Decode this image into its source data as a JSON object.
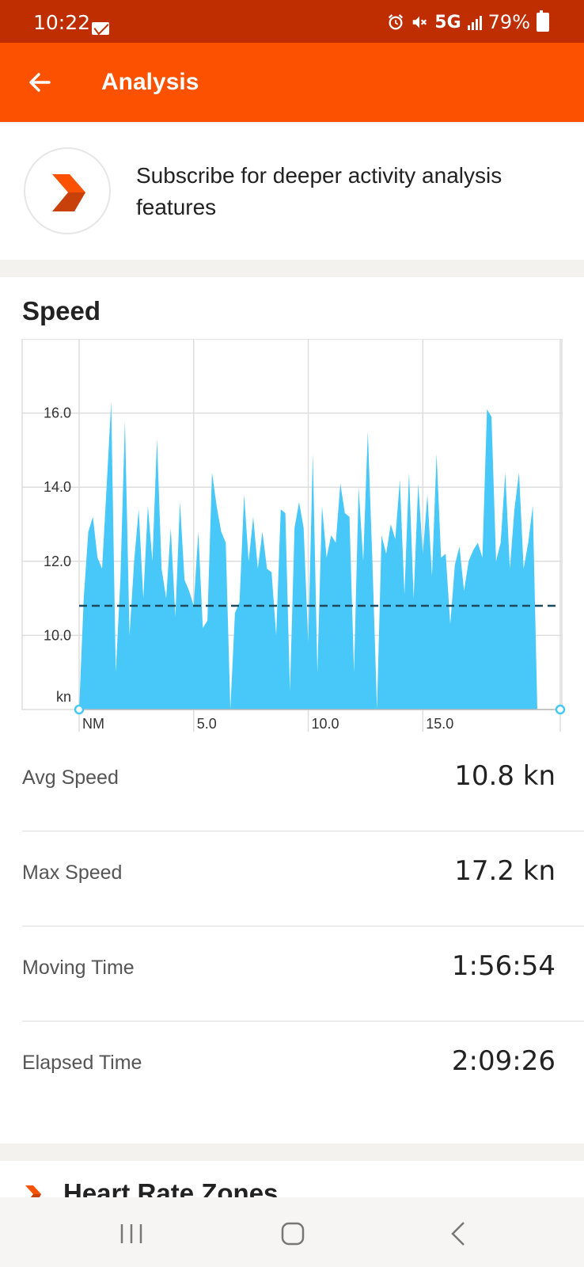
{
  "status_bar": {
    "time": "10:22",
    "network": "5G",
    "battery": "79%"
  },
  "app_bar": {
    "title": "Analysis",
    "back_icon": "arrow-left-icon"
  },
  "promo": {
    "text": "Subscribe for deeper activity analysis features",
    "logo_icon": "strava-chevron-logo"
  },
  "speed": {
    "title": "Speed",
    "stats": [
      {
        "label": "Avg Speed",
        "value": "10.8 kn"
      },
      {
        "label": "Max Speed",
        "value": "17.2 kn"
      },
      {
        "label": "Moving Time",
        "value": "1:56:54"
      },
      {
        "label": "Elapsed Time",
        "value": "2:09:26"
      }
    ]
  },
  "next_section": {
    "title": "Heart Rate Zones"
  },
  "colors": {
    "brand": "#fc5200",
    "status_bar": "#bf2e00",
    "area_fill": "#48c8f8",
    "avg_line": "#1e4a5e"
  },
  "chart_data": {
    "type": "area",
    "ylabel": "kn",
    "xlabel": "NM",
    "x_ticks": [
      "5.0",
      "10.0",
      "15.0"
    ],
    "y_ticks": [
      "10.0",
      "12.0",
      "14.0",
      "16.0"
    ],
    "xlim": [
      0,
      21
    ],
    "ylim": [
      8,
      18
    ],
    "avg_line": 10.8,
    "grid": true,
    "x": [
      0.0,
      0.2,
      0.4,
      0.6,
      0.8,
      1.0,
      1.2,
      1.4,
      1.6,
      1.8,
      2.0,
      2.2,
      2.4,
      2.6,
      2.8,
      3.0,
      3.2,
      3.4,
      3.6,
      3.8,
      4.0,
      4.2,
      4.4,
      4.6,
      4.8,
      5.0,
      5.2,
      5.4,
      5.6,
      5.8,
      6.0,
      6.2,
      6.4,
      6.6,
      6.8,
      7.0,
      7.2,
      7.4,
      7.6,
      7.8,
      8.0,
      8.2,
      8.4,
      8.6,
      8.8,
      9.0,
      9.2,
      9.4,
      9.6,
      9.8,
      10.0,
      10.2,
      10.4,
      10.6,
      10.8,
      11.0,
      11.2,
      11.4,
      11.6,
      11.8,
      12.0,
      12.2,
      12.4,
      12.6,
      12.8,
      13.0,
      13.2,
      13.4,
      13.6,
      13.8,
      14.0,
      14.2,
      14.4,
      14.6,
      14.8,
      15.0,
      15.2,
      15.4,
      15.6,
      15.8,
      16.0,
      16.2,
      16.4,
      16.6,
      16.8,
      17.0,
      17.2,
      17.4,
      17.6,
      17.8,
      18.0,
      18.2,
      18.4,
      18.6,
      18.8,
      19.0,
      19.2,
      19.4,
      19.6,
      19.8,
      20.0,
      20.2,
      20.4,
      20.6,
      20.8,
      21.0
    ],
    "series": [
      {
        "values": [
          8.0,
          11.0,
          12.8,
          13.2,
          12.1,
          11.8,
          14.0,
          16.3,
          9.0,
          11.5,
          15.8,
          10.0,
          12.0,
          13.4,
          11.0,
          13.5,
          12.0,
          15.3,
          11.8,
          11.0,
          12.9,
          10.5,
          13.6,
          11.5,
          11.2,
          10.8,
          12.8,
          10.2,
          10.4,
          14.4,
          13.5,
          12.8,
          12.5,
          8.0,
          10.6,
          10.9,
          13.8,
          12.0,
          13.2,
          11.8,
          12.8,
          11.8,
          11.7,
          10.0,
          13.4,
          13.3,
          8.5,
          12.9,
          13.6,
          12.9,
          9.8,
          14.9,
          9.0,
          13.5,
          12.1,
          12.7,
          12.5,
          14.1,
          13.3,
          13.2,
          9.0,
          14.0,
          12.0,
          15.5,
          12.0,
          8.0,
          12.7,
          12.2,
          13.0,
          12.6,
          14.2,
          11.1,
          14.4,
          11.0,
          14.1,
          12.2,
          13.8,
          11.6,
          14.9,
          12.1,
          12.2,
          10.3,
          11.9,
          12.4,
          11.2,
          12.0,
          12.3,
          12.5,
          12.1,
          16.1,
          15.9,
          12.0,
          12.5,
          14.4,
          11.8,
          13.4,
          14.4,
          11.8,
          12.5,
          13.5,
          8.0,
          8.0,
          8.0,
          8.0,
          8.0,
          8.0
        ]
      }
    ]
  }
}
